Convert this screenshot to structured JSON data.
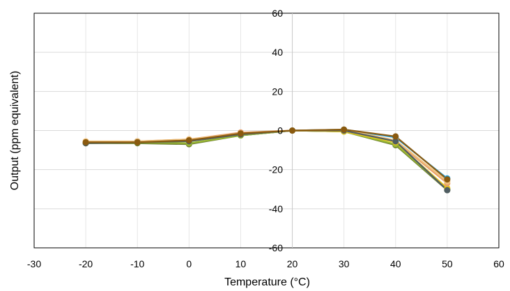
{
  "chart_data": {
    "type": "scatter",
    "title": "",
    "xlabel": "Temperature (°C)",
    "ylabel": "Output (ppm equivalent)",
    "xlim": [
      -30,
      60
    ],
    "ylim": [
      -60,
      60
    ],
    "xticks": [
      -30,
      -20,
      -10,
      0,
      10,
      20,
      30,
      40,
      50,
      60
    ],
    "yticks": [
      -60,
      -40,
      -20,
      0,
      20,
      40,
      60
    ],
    "grid": true,
    "legend": "none",
    "series": [
      {
        "color": "#1f9bd7",
        "x": [
          -20,
          -10,
          0,
          10,
          20,
          30,
          40,
          50
        ],
        "y": [
          -6.0,
          -5.5,
          -5.0,
          -2.5,
          0.0,
          0.5,
          -3.5,
          -24.5
        ]
      },
      {
        "color": "#6d7f2f",
        "x": [
          -20,
          -10,
          0,
          10,
          20,
          30,
          40,
          50
        ],
        "y": [
          -6.5,
          -6.5,
          -7.0,
          -2.5,
          0.0,
          -0.5,
          -7.5,
          -30.5
        ]
      },
      {
        "color": "#9ab832",
        "x": [
          -20,
          -10,
          0,
          10,
          20,
          30,
          40,
          50
        ],
        "y": [
          -6.5,
          -6.0,
          -6.5,
          -2.5,
          0.0,
          -0.5,
          -7.0,
          -30.0
        ]
      },
      {
        "color": "#e6c619",
        "x": [
          -20,
          -10,
          0,
          10,
          20,
          30,
          40,
          50
        ],
        "y": [
          -6.0,
          -6.0,
          -5.5,
          -2.0,
          0.0,
          -0.5,
          -6.0,
          -29.5
        ]
      },
      {
        "color": "#e8a06a",
        "x": [
          -20,
          -10,
          0,
          10,
          20,
          30,
          40,
          50
        ],
        "y": [
          -6.0,
          -5.5,
          -4.5,
          -1.0,
          0.0,
          0.0,
          -5.5,
          -27.0
        ]
      },
      {
        "color": "#f1c27d",
        "x": [
          -20,
          -10,
          0,
          10,
          20,
          30,
          40,
          50
        ],
        "y": [
          -5.5,
          -5.5,
          -4.5,
          -1.5,
          0.0,
          0.5,
          -5.0,
          -26.0
        ]
      },
      {
        "color": "#4f5d62",
        "x": [
          -20,
          -10,
          0,
          10,
          20,
          30,
          40,
          50
        ],
        "y": [
          -6.5,
          -6.0,
          -5.5,
          -2.0,
          0.0,
          0.0,
          -5.5,
          -30.5
        ]
      },
      {
        "color": "#8a5a0f",
        "x": [
          -20,
          -10,
          0,
          10,
          20,
          30,
          40,
          50
        ],
        "y": [
          -6.0,
          -6.0,
          -5.0,
          -1.5,
          0.0,
          0.5,
          -3.0,
          -25.0
        ]
      }
    ]
  }
}
